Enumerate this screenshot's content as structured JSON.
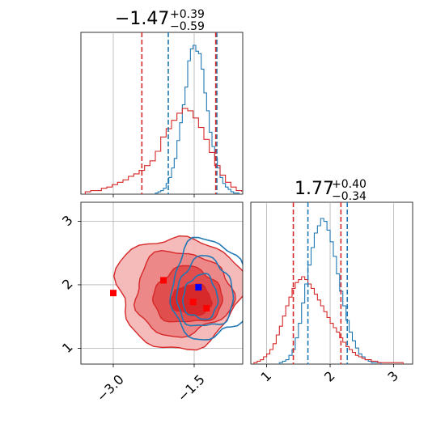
{
  "chart_data": [
    {
      "type": "histogram",
      "panel": "top-left",
      "title": {
        "value": "−1.47",
        "plus": "+0.39",
        "minus": "−0.59"
      },
      "xlim": [
        -3.6,
        -0.6
      ],
      "quantile_lines": {
        "blue": [
          -1.98,
          -1.08
        ],
        "red": [
          -2.47,
          -1.1
        ]
      },
      "series": [
        {
          "color": "#1f77b4",
          "bin_edges": [
            -2.22,
            -2.17,
            -2.12,
            -2.07,
            -2.02,
            -1.97,
            -1.92,
            -1.87,
            -1.82,
            -1.77,
            -1.72,
            -1.67,
            -1.62,
            -1.57,
            -1.52,
            -1.47,
            -1.42,
            -1.37,
            -1.32,
            -1.27,
            -1.22,
            -1.17,
            -1.12,
            -1.07,
            -1.02,
            -0.97,
            -0.92,
            -0.87,
            -0.82,
            -0.77,
            -0.72,
            -0.67
          ],
          "counts": [
            1,
            2,
            3,
            5,
            9,
            14,
            22,
            30,
            45,
            60,
            75,
            90,
            112,
            122,
            125,
            120,
            118,
            105,
            85,
            70,
            52,
            40,
            30,
            22,
            14,
            9,
            6,
            4,
            2,
            1,
            1
          ]
        },
        {
          "color": "#d62728",
          "bin_edges": [
            -3.52,
            -3.42,
            -3.32,
            -3.22,
            -3.12,
            -3.02,
            -2.92,
            -2.82,
            -2.72,
            -2.62,
            -2.52,
            -2.42,
            -2.32,
            -2.22,
            -2.12,
            -2.02,
            -1.92,
            -1.82,
            -1.72,
            -1.62,
            -1.52,
            -1.42,
            -1.32,
            -1.22,
            -1.12,
            -1.02,
            -0.92,
            -0.82,
            -0.72,
            -0.62
          ],
          "counts": [
            2,
            3,
            3,
            5,
            6,
            8,
            10,
            12,
            15,
            17,
            20,
            24,
            28,
            36,
            48,
            55,
            62,
            68,
            72,
            70,
            64,
            56,
            46,
            35,
            24,
            16,
            10,
            6,
            3,
            2
          ]
        }
      ]
    },
    {
      "type": "contour",
      "panel": "bottom-left",
      "xlim": [
        -3.6,
        -0.6
      ],
      "ylim": [
        0.75,
        3.3
      ],
      "xticks": [
        -3.0,
        -1.5
      ],
      "xtick_labels": [
        "−3.0",
        "−1.5"
      ],
      "yticks": [
        1,
        2,
        3
      ],
      "ytick_labels": [
        "1",
        "2",
        "3"
      ],
      "series": [
        {
          "color": "#d62728",
          "filled": true,
          "levels": [
            {
              "cx": -1.78,
              "cy": 1.89,
              "rx": 1.16,
              "ry": 0.88
            },
            {
              "cx": -1.72,
              "cy": 1.86,
              "rx": 0.9,
              "ry": 0.66
            },
            {
              "cx": -1.62,
              "cy": 1.82,
              "rx": 0.64,
              "ry": 0.44
            },
            {
              "cx": -1.55,
              "cy": 1.76,
              "rx": 0.38,
              "ry": 0.24
            }
          ]
        },
        {
          "color": "#1f77b4",
          "filled": false,
          "levels": [
            {
              "cx": -1.22,
              "cy": 1.92,
              "rx": 0.72,
              "ry": 0.78
            },
            {
              "cx": -1.3,
              "cy": 1.86,
              "rx": 0.52,
              "ry": 0.55
            },
            {
              "cx": -1.38,
              "cy": 1.8,
              "rx": 0.32,
              "ry": 0.35
            }
          ]
        }
      ],
      "markers": [
        {
          "x": -3.0,
          "y": 1.87,
          "color": "#ff0000"
        },
        {
          "x": -2.07,
          "y": 2.07,
          "color": "#ff0000"
        },
        {
          "x": -1.52,
          "y": 1.73,
          "color": "#ff0000"
        },
        {
          "x": -1.27,
          "y": 1.63,
          "color": "#ff0000"
        },
        {
          "x": -1.42,
          "y": 1.96,
          "color": "#0000ff"
        }
      ]
    },
    {
      "type": "histogram",
      "panel": "bottom-right",
      "title": {
        "value": "1.77",
        "plus": "+0.40",
        "minus": "−0.34"
      },
      "xlim": [
        0.75,
        3.3
      ],
      "xticks": [
        1,
        2,
        3
      ],
      "xtick_labels": [
        "1",
        "2",
        "3"
      ],
      "quantile_lines": {
        "blue": [
          1.65,
          2.27
        ],
        "red": [
          1.42,
          2.17
        ]
      },
      "series": [
        {
          "color": "#1f77b4",
          "bin_edges": [
            1.2,
            1.25,
            1.3,
            1.35,
            1.4,
            1.45,
            1.5,
            1.55,
            1.6,
            1.65,
            1.7,
            1.75,
            1.8,
            1.85,
            1.9,
            1.95,
            2.0,
            2.05,
            2.1,
            2.15,
            2.2,
            2.25,
            2.3,
            2.35,
            2.4,
            2.45,
            2.5,
            2.55,
            2.6,
            2.65,
            2.7,
            2.75,
            2.8
          ],
          "counts": [
            1,
            2,
            3,
            6,
            10,
            18,
            28,
            42,
            55,
            68,
            80,
            90,
            95,
            100,
            98,
            92,
            84,
            74,
            62,
            50,
            40,
            30,
            22,
            16,
            11,
            7,
            5,
            3,
            2,
            1,
            1,
            1
          ]
        },
        {
          "color": "#d62728",
          "bin_edges": [
            0.8,
            0.85,
            0.9,
            0.95,
            1.0,
            1.05,
            1.1,
            1.15,
            1.2,
            1.25,
            1.3,
            1.35,
            1.4,
            1.45,
            1.5,
            1.55,
            1.6,
            1.65,
            1.7,
            1.75,
            1.8,
            1.85,
            1.9,
            1.95,
            2.0,
            2.05,
            2.1,
            2.15,
            2.2,
            2.25,
            2.3,
            2.35,
            2.4,
            2.45,
            2.5,
            2.55,
            2.6,
            2.65,
            2.7,
            2.75,
            2.8,
            2.85,
            2.9,
            2.95,
            3.0,
            3.05,
            3.1,
            3.15
          ],
          "counts": [
            1,
            2,
            3,
            5,
            7,
            10,
            14,
            20,
            26,
            33,
            40,
            46,
            52,
            56,
            58,
            60,
            58,
            55,
            52,
            48,
            44,
            40,
            36,
            32,
            28,
            25,
            22,
            18,
            15,
            12,
            10,
            8,
            6,
            5,
            4,
            3,
            3,
            2,
            2,
            1,
            1,
            1,
            1,
            1,
            1,
            1,
            1
          ]
        }
      ]
    }
  ]
}
